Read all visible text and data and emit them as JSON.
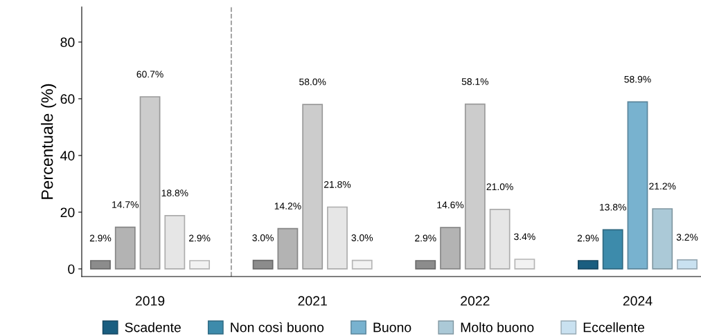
{
  "chart_data": {
    "type": "bar",
    "ylabel": "Percentuale (%)",
    "categories": [
      "2019",
      "2021",
      "2022",
      "2024"
    ],
    "series": [
      {
        "name": "Scadente",
        "color": "#1a5e80",
        "colors": [
          "#8c8c8c",
          "#8c8c8c",
          "#8c8c8c",
          "#1a5e80"
        ],
        "values": [
          2.9,
          3.0,
          2.9,
          2.9
        ],
        "value_labels": [
          "2.9%",
          "3.0%",
          "2.9%",
          "2.9%"
        ]
      },
      {
        "name": "Non così buono",
        "color": "#3d8bab",
        "colors": [
          "#b3b3b3",
          "#b3b3b3",
          "#b3b3b3",
          "#3d8bab"
        ],
        "values": [
          14.7,
          14.2,
          14.6,
          13.8
        ],
        "value_labels": [
          "14.7%",
          "14.2%",
          "14.6%",
          "13.8%"
        ]
      },
      {
        "name": "Buono",
        "color": "#78b2cf",
        "colors": [
          "#cccccc",
          "#cccccc",
          "#cccccc",
          "#78b2cf"
        ],
        "values": [
          60.7,
          58.0,
          58.1,
          58.9
        ],
        "value_labels": [
          "60.7%",
          "58.0%",
          "58.1%",
          "58.9%"
        ]
      },
      {
        "name": "Molto buono",
        "color": "#abc9d7",
        "colors": [
          "#e6e6e6",
          "#e6e6e6",
          "#e6e6e6",
          "#abc9d7"
        ],
        "values": [
          18.8,
          21.8,
          21.0,
          21.2
        ],
        "value_labels": [
          "18.8%",
          "21.8%",
          "21.0%",
          "21.2%"
        ]
      },
      {
        "name": "Eccellente",
        "color": "#c9e1f0",
        "colors": [
          "#f2f2f2",
          "#f2f2f2",
          "#f2f2f2",
          "#c9e1f0"
        ],
        "values": [
          2.9,
          3.0,
          3.4,
          3.2
        ],
        "value_labels": [
          "2.9%",
          "3.0%",
          "3.4%",
          "3.2%"
        ]
      }
    ],
    "ylim": [
      -2.7,
      92.4
    ],
    "yticks": [
      0,
      20,
      40,
      60,
      80
    ],
    "grid": false,
    "legend": "bottom"
  }
}
